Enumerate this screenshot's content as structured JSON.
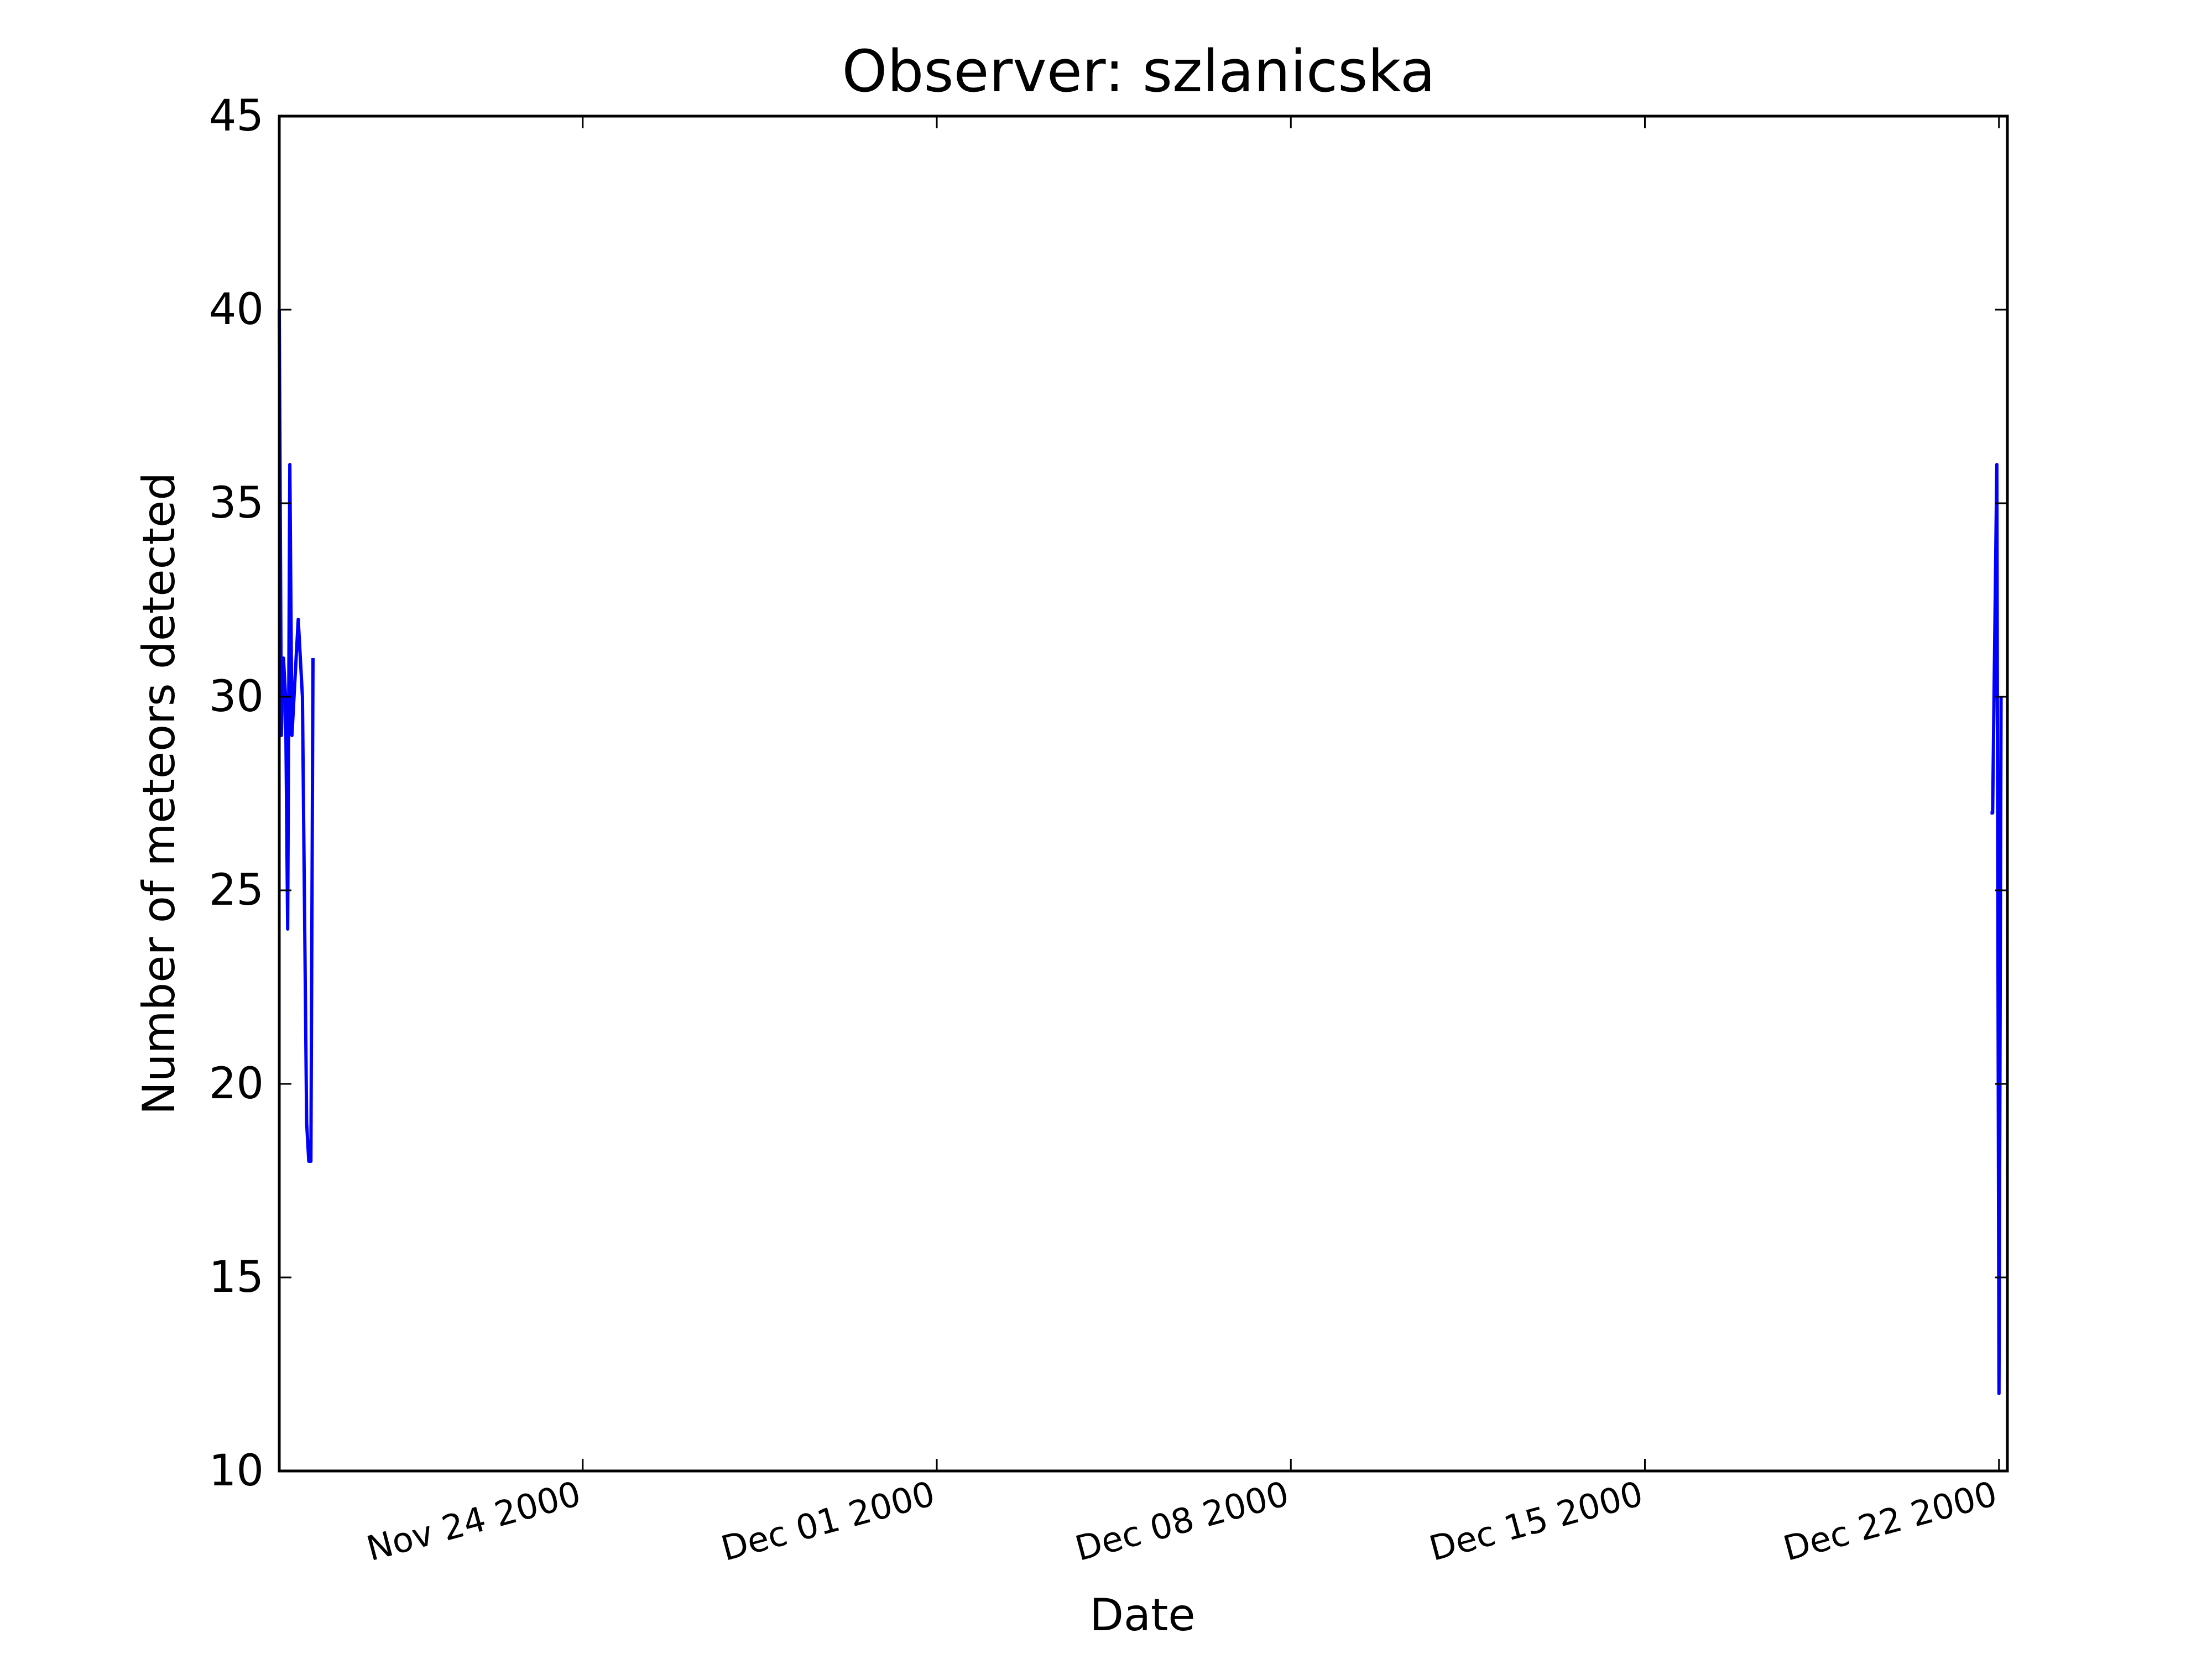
{
  "chart_data": {
    "type": "line",
    "title": "Observer: szlanicska",
    "xlabel": "Date",
    "ylabel": "Number of meteors detected",
    "x_tick_labels": [
      "Nov 24 2000",
      "Dec 01 2000",
      "Dec 08 2000",
      "Dec 15 2000",
      "Dec 22 2000"
    ],
    "y_tick_labels": [
      "10",
      "15",
      "20",
      "25",
      "30",
      "35",
      "40",
      "45"
    ],
    "xlim": [
      "2000-11-18T00:00",
      "2000-12-22T04:00"
    ],
    "ylim": [
      10,
      45
    ],
    "grid": false,
    "legend": "none",
    "series": [
      {
        "color": "#0000ff",
        "points": [
          {
            "x": "2000-11-18T00:00",
            "y": 40
          },
          {
            "x": "2000-11-18T01:00",
            "y": 29
          },
          {
            "x": "2000-11-18T02:00",
            "y": 31
          },
          {
            "x": "2000-11-18T03:00",
            "y": 30
          },
          {
            "x": "2000-11-18T04:00",
            "y": 24
          },
          {
            "x": "2000-11-18T05:00",
            "y": 36
          },
          {
            "x": "2000-11-18T06:00",
            "y": 29
          },
          {
            "x": "2000-11-18T07:00",
            "y": 30
          },
          {
            "x": "2000-11-18T08:00",
            "y": 31
          },
          {
            "x": "2000-11-18T09:00",
            "y": 32
          },
          {
            "x": "2000-11-18T10:00",
            "y": 31
          },
          {
            "x": "2000-11-18T11:00",
            "y": 30
          },
          {
            "x": "2000-11-18T13:00",
            "y": 19
          },
          {
            "x": "2000-11-18T14:00",
            "y": 18
          },
          {
            "x": "2000-11-18T15:00",
            "y": 18
          },
          {
            "x": "2000-11-18T16:00",
            "y": 31
          },
          null,
          {
            "x": "2000-12-21T20:00",
            "y": 27
          },
          {
            "x": "2000-12-21T21:00",
            "y": 27
          },
          {
            "x": "2000-12-21T23:00",
            "y": 36
          },
          {
            "x": "2000-12-22T00:00",
            "y": 12
          },
          {
            "x": "2000-12-22T01:00",
            "y": 30
          }
        ]
      }
    ]
  }
}
